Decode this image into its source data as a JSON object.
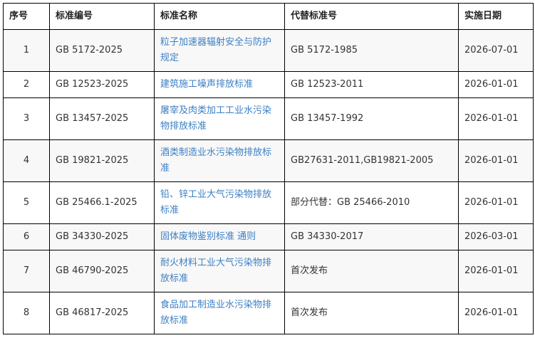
{
  "headers": [
    "序号",
    "标准编号",
    "标准名称",
    "代替标准号",
    "实施日期"
  ],
  "rows": [
    {
      "no": "1",
      "code": "GB 5172-2025",
      "name": "粒子加速器辐射安全与防护规定",
      "replaces": "GB 5172-1985",
      "date": "2026-07-01",
      "shaded": true,
      "tall": true
    },
    {
      "no": "2",
      "code": "GB 12523-2025",
      "name": "建筑施工噪声排放标准",
      "replaces": "GB 12523-2011",
      "date": "2026-01-01",
      "shaded": false,
      "tall": false
    },
    {
      "no": "3",
      "code": "GB 13457-2025",
      "name": "屠宰及肉类加工工业水污染物排放标准",
      "replaces": "GB 13457-1992",
      "date": "2026-01-01",
      "shaded": false,
      "tall": true
    },
    {
      "no": "4",
      "code": "GB 19821-2025",
      "name": "酒类制造业水污染物排放标准",
      "replaces": "GB27631-2011,GB19821-2005",
      "date": "2026-01-01",
      "shaded": true,
      "tall": true
    },
    {
      "no": "5",
      "code": "GB 25466.1-2025",
      "name": "铅、锌工业大气污染物排放标准",
      "replaces": "部分代替：GB 25466-2010",
      "date": "2026-01-01",
      "shaded": false,
      "tall": true
    },
    {
      "no": "6",
      "code": "GB 34330-2025",
      "name": "固体废物鉴别标准  通则",
      "replaces": "GB 34330-2017",
      "date": "2026-03-01",
      "shaded": true,
      "tall": false
    },
    {
      "no": "7",
      "code": "GB 46790-2025",
      "name": "耐火材料工业大气污染物排放标准",
      "replaces": "首次发布",
      "date": "2026-01-01",
      "shaded": true,
      "tall": true
    },
    {
      "no": "8",
      "code": "GB 46817-2025",
      "name": "食品加工制造业水污染物排放标准",
      "replaces": "首次发布",
      "date": "2026-01-01",
      "shaded": false,
      "tall": true
    }
  ]
}
